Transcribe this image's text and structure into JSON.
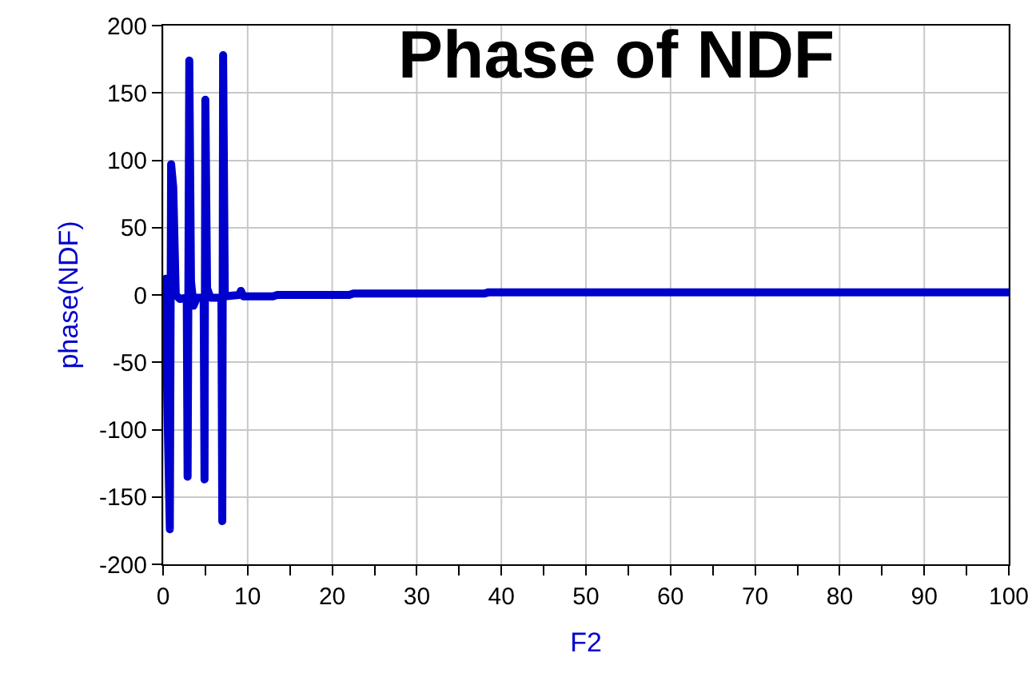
{
  "chart_data": {
    "type": "line",
    "title": "Phase of NDF",
    "xlabel": "F2",
    "ylabel": "phase(NDF)",
    "x": [
      0,
      0.3,
      0.5,
      0.8,
      0.95,
      1.2,
      1.5,
      2,
      2.8,
      2.9,
      3.1,
      3.3,
      3.6,
      4,
      4.8,
      4.9,
      5.0,
      5.2,
      5.6,
      6.9,
      7.0,
      7.1,
      7.3,
      9,
      9.2,
      9.5,
      13,
      13.5,
      22,
      22.5,
      38,
      38.5,
      100
    ],
    "series": [
      {
        "color": "#0000cc",
        "values": [
          10,
          12,
          -80,
          -174,
          97,
          80,
          0,
          -3,
          -2,
          -135,
          174,
          10,
          -8,
          -2,
          -2,
          -137,
          145,
          5,
          -2,
          -2,
          -168,
          178,
          -1,
          0,
          3,
          -1,
          -1,
          0,
          0,
          1,
          1,
          2,
          2
        ]
      }
    ],
    "xlim": [
      0,
      100
    ],
    "ylim": [
      -200,
      200
    ],
    "xticks": [
      0,
      {
        "value": 5,
        "label": null
      },
      10,
      {
        "value": 15,
        "label": null
      },
      20,
      {
        "value": 25,
        "label": null
      },
      30,
      {
        "value": 35,
        "label": null
      },
      40,
      {
        "value": 45,
        "label": null
      },
      50,
      {
        "value": 55,
        "label": null
      },
      60,
      {
        "value": 65,
        "label": null
      },
      70,
      {
        "value": 75,
        "label": null
      },
      80,
      {
        "value": 85,
        "label": null
      },
      90,
      {
        "value": 95,
        "label": null
      },
      100
    ],
    "yticks": [
      -200,
      -150,
      -100,
      -50,
      0,
      50,
      100,
      150,
      200
    ],
    "grid": true,
    "marker": "none",
    "line_style": "solid"
  }
}
